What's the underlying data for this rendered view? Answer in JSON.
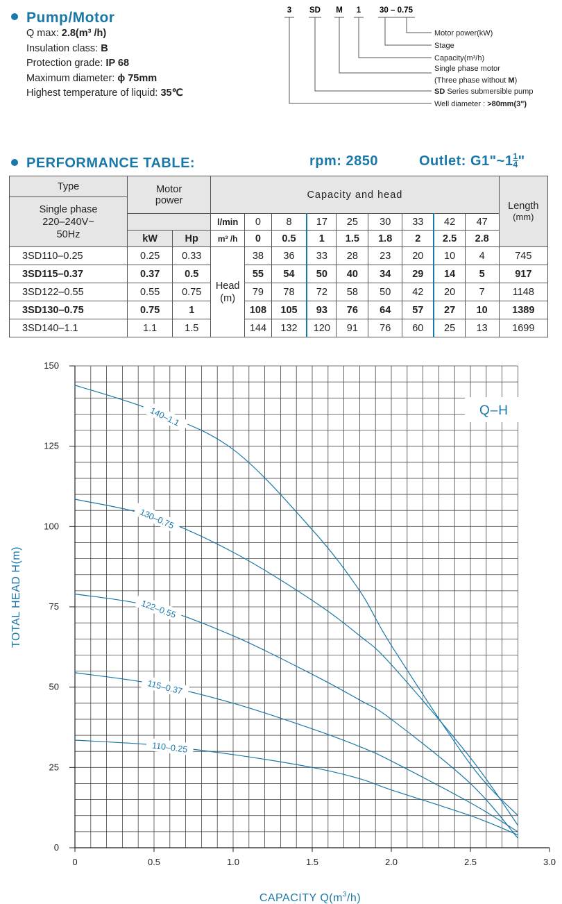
{
  "spec": {
    "title": "Pump/Motor",
    "qmax_label": "Q max: ",
    "qmax_value": "2.8(m³ /h)",
    "insulation_label": "Insulation class: ",
    "insulation_value": "B",
    "protection_label": "Protection grade: ",
    "protection_value": "IP 68",
    "diameter_label": "Maximum diameter: ",
    "diameter_value": "ϕ 75mm",
    "temp_label": "Highest temperature of liquid: ",
    "temp_value": "35℃"
  },
  "model_code": {
    "parts": [
      "3",
      "SD",
      "M",
      "1",
      "30 – 0.75"
    ],
    "descriptions": {
      "motor_power": "Motor power(kW)",
      "stage": "Stage",
      "capacity": "Capacity(m³/h)",
      "single_phase": "Single phase motor",
      "three_phase_prefix": "(Three phase without ",
      "three_phase_bold": "M",
      "three_phase_suffix": ")",
      "series_bold": "SD",
      "series_rest": " Series submersible pump",
      "well_label": "Well diameter : ",
      "well_value": ">80mm(3\")"
    }
  },
  "performance": {
    "title": "PERFORMANCE TABLE:",
    "rpm_label": "rpm:",
    "rpm_value": "2850",
    "outlet_label": "Outlet:",
    "outlet_value": "G1\"~1",
    "outlet_frac_num": "1",
    "outlet_frac_den": "4",
    "outlet_close": "\"",
    "headers": {
      "type": "Type",
      "single_phase": "Single phase",
      "voltage": "220–240V~",
      "freq": "50Hz",
      "motor_power_line1": "Motor",
      "motor_power_line2": "power",
      "kw": "kW",
      "hp": "Hp",
      "capacity_and_head": "Capacity and head",
      "lmin": "l/min",
      "m3h": "m³ /h",
      "length_line1": "Length",
      "length_line2": "(mm)",
      "head_line1": "Head",
      "head_line2": "(m)"
    },
    "lmin_values": [
      "0",
      "8",
      "17",
      "25",
      "30",
      "33",
      "42",
      "47"
    ],
    "m3h_values": [
      "0",
      "0.5",
      "1",
      "1.5",
      "1.8",
      "2",
      "2.5",
      "2.8"
    ],
    "rows": [
      {
        "model": "3SD110–0.25",
        "kw": "0.25",
        "hp": "0.33",
        "heads": [
          "38",
          "36",
          "33",
          "28",
          "23",
          "20",
          "10",
          "4"
        ],
        "length": "745",
        "bold": false
      },
      {
        "model": "3SD115–0.37",
        "kw": "0.37",
        "hp": "0.5",
        "heads": [
          "55",
          "54",
          "50",
          "40",
          "34",
          "29",
          "14",
          "5"
        ],
        "length": "917",
        "bold": true
      },
      {
        "model": "3SD122–0.55",
        "kw": "0.55",
        "hp": "0.75",
        "heads": [
          "79",
          "78",
          "72",
          "58",
          "50",
          "42",
          "20",
          "7"
        ],
        "length": "1148",
        "bold": false
      },
      {
        "model": "3SD130–0.75",
        "kw": "0.75",
        "hp": "1",
        "heads": [
          "108",
          "105",
          "93",
          "76",
          "64",
          "57",
          "27",
          "10"
        ],
        "length": "1389",
        "bold": true
      },
      {
        "model": "3SD140–1.1",
        "kw": "1.1",
        "hp": "1.5",
        "heads": [
          "144",
          "132",
          "120",
          "91",
          "76",
          "60",
          "25",
          "13"
        ],
        "length": "1699",
        "bold": false
      }
    ]
  },
  "chart_data": {
    "type": "line",
    "title": "Q–H",
    "xlabel_prefix": "CAPACITY Q(m",
    "xlabel_sup": "3",
    "xlabel_suffix": "/h)",
    "ylabel": "TOTAL HEAD H(m)",
    "xlim": [
      0,
      3.0
    ],
    "ylim": [
      0,
      150
    ],
    "xticks": [
      "0",
      "0.5",
      "1.0",
      "1.5",
      "2.0",
      "2.5",
      "3.0"
    ],
    "yticks": [
      "0",
      "25",
      "50",
      "75",
      "100",
      "125",
      "150"
    ],
    "grid": true,
    "curve_color": "#1a78a8",
    "series": [
      {
        "name": "110–0.25",
        "x": [
          0,
          0.5,
          1.0,
          1.5,
          1.8,
          2.0,
          2.5,
          2.8
        ],
        "y": [
          33.5,
          32,
          29,
          25,
          21.5,
          18,
          10,
          4
        ]
      },
      {
        "name": "115–0.37",
        "x": [
          0,
          0.5,
          1.0,
          1.5,
          1.8,
          2.0,
          2.5,
          2.8
        ],
        "y": [
          54.5,
          51,
          45,
          37,
          31.5,
          27,
          14,
          5
        ]
      },
      {
        "name": "122–0.55",
        "x": [
          0,
          0.5,
          1.0,
          1.5,
          1.8,
          2.0,
          2.5,
          2.8
        ],
        "y": [
          79,
          75,
          66,
          54,
          46,
          40,
          20,
          3
        ]
      },
      {
        "name": "130–0.75",
        "x": [
          0,
          0.5,
          1.0,
          1.5,
          1.8,
          2.0,
          2.5,
          2.8
        ],
        "y": [
          108.5,
          103,
          92,
          77,
          66,
          57,
          28,
          7
        ]
      },
      {
        "name": "140–1.1",
        "x": [
          0,
          0.5,
          1.0,
          1.5,
          1.8,
          2.0,
          2.5,
          2.8
        ],
        "y": [
          144,
          136,
          124,
          99,
          80,
          63,
          26,
          10
        ]
      }
    ]
  }
}
